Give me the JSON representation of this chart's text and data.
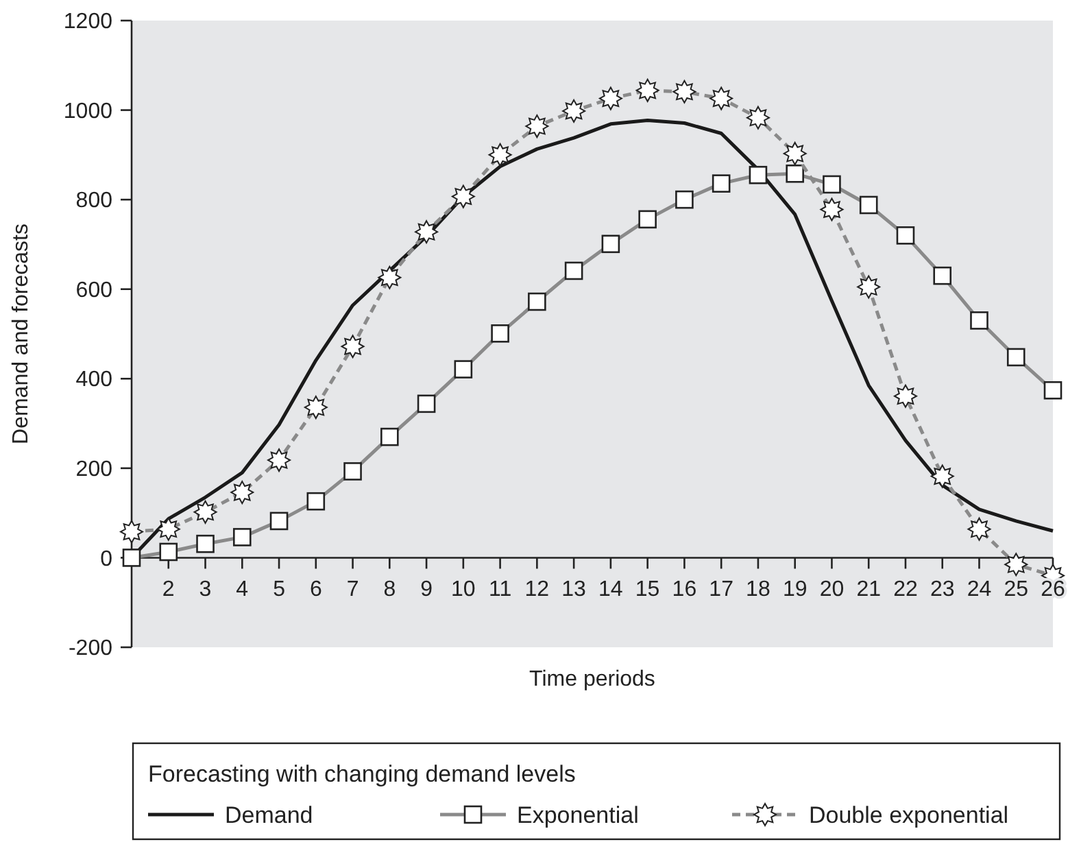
{
  "chart_data": {
    "type": "line",
    "xlabel": "Time periods",
    "ylabel": "Demand and forecasts",
    "legend_title": "Forecasting with changing demand levels",
    "legend": "bottom",
    "grid": false,
    "xlim": [
      1,
      26
    ],
    "xticks": [
      2,
      3,
      4,
      5,
      6,
      7,
      8,
      9,
      10,
      11,
      12,
      13,
      14,
      15,
      16,
      17,
      18,
      19,
      20,
      21,
      22,
      23,
      24,
      25,
      26
    ],
    "ylim": [
      -200,
      1200
    ],
    "yticks": [
      -200,
      0,
      200,
      400,
      600,
      800,
      1000,
      1200
    ],
    "x": [
      1,
      2,
      3,
      4,
      5,
      6,
      7,
      8,
      9,
      10,
      11,
      12,
      13,
      14,
      15,
      16,
      17,
      18,
      19,
      20,
      21,
      22,
      23,
      24,
      25,
      26
    ],
    "series": [
      {
        "name": "Demand",
        "color": "#1a1a1a",
        "marker": "none",
        "line_style": "solid",
        "values": [
          0,
          87,
          135,
          190,
          297,
          441,
          564,
          641,
          718,
          807,
          874,
          913,
          938,
          969,
          977,
          971,
          948,
          867,
          767,
          574,
          385,
          262,
          162,
          108,
          82,
          60
        ]
      },
      {
        "name": "Exponential",
        "color": "#8a8a8a",
        "marker": "square",
        "line_style": "solid",
        "values": [
          0,
          13,
          31,
          46,
          82,
          126,
          193,
          270,
          344,
          421,
          501,
          572,
          641,
          701,
          756,
          800,
          836,
          855,
          858,
          834,
          788,
          720,
          630,
          530,
          448,
          374
        ]
      },
      {
        "name": "Double exponential",
        "color": "#8a8a8a",
        "marker": "star",
        "line_style": "dashed",
        "values": [
          58,
          64,
          102,
          146,
          218,
          336,
          472,
          626,
          728,
          807,
          900,
          964,
          998,
          1026,
          1044,
          1041,
          1026,
          983,
          903,
          778,
          605,
          361,
          182,
          64,
          -15,
          -40
        ]
      }
    ]
  }
}
